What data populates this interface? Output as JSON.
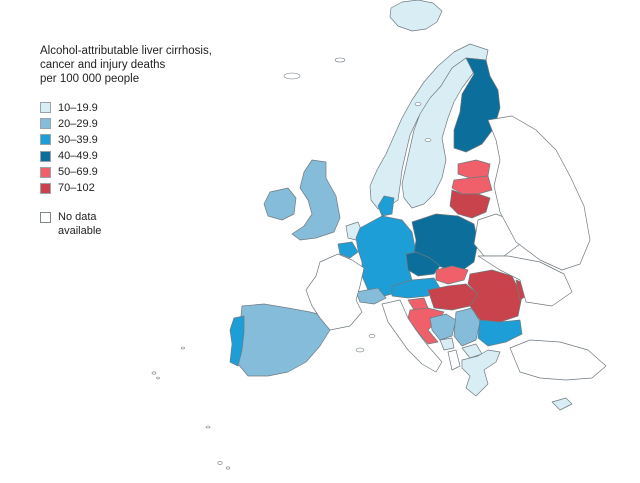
{
  "legend": {
    "title": "Alcohol-attributable liver cirrhosis,\ncancer and injury deaths\nper 100 000 people",
    "bins": [
      {
        "label": "10–19.9",
        "color": "#d9edf5"
      },
      {
        "label": "20–29.9",
        "color": "#85bcd9"
      },
      {
        "label": "30–39.9",
        "color": "#1d9ed6"
      },
      {
        "label": "40–49.9",
        "color": "#0b6e9b"
      },
      {
        "label": "50–69.9",
        "color": "#f0606a"
      },
      {
        "label": "70–102",
        "color": "#c8434b"
      }
    ],
    "no_data": {
      "label": "No data\navailable",
      "color": "#ffffff"
    }
  },
  "map": {
    "border_color": "#6f7a80",
    "countries": [
      {
        "name": "Iceland",
        "bin": 0
      },
      {
        "name": "Norway",
        "bin": 0
      },
      {
        "name": "Sweden",
        "bin": 0
      },
      {
        "name": "Finland",
        "bin": 3
      },
      {
        "name": "Estonia",
        "bin": 4
      },
      {
        "name": "Latvia",
        "bin": 4
      },
      {
        "name": "Lithuania",
        "bin": 5
      },
      {
        "name": "United Kingdom",
        "bin": 1
      },
      {
        "name": "Ireland",
        "bin": 1
      },
      {
        "name": "Netherlands",
        "bin": 0
      },
      {
        "name": "Belgium",
        "bin": 2
      },
      {
        "name": "Germany",
        "bin": 2
      },
      {
        "name": "Denmark",
        "bin": 2
      },
      {
        "name": "Poland",
        "bin": 3
      },
      {
        "name": "Czechia",
        "bin": 3
      },
      {
        "name": "Slovakia",
        "bin": 4
      },
      {
        "name": "Austria",
        "bin": 2
      },
      {
        "name": "Switzerland",
        "bin": 1
      },
      {
        "name": "Slovenia",
        "bin": 4
      },
      {
        "name": "Hungary",
        "bin": 5
      },
      {
        "name": "Croatia",
        "bin": 4
      },
      {
        "name": "Bosnia and Herzegovina",
        "bin": 1
      },
      {
        "name": "Serbia",
        "bin": 1
      },
      {
        "name": "Montenegro",
        "bin": 0
      },
      {
        "name": "Romania",
        "bin": 5
      },
      {
        "name": "Moldova",
        "bin": 5
      },
      {
        "name": "Bulgaria",
        "bin": 2
      },
      {
        "name": "North Macedonia",
        "bin": 0
      },
      {
        "name": "Greece",
        "bin": 0
      },
      {
        "name": "Cyprus",
        "bin": 0
      },
      {
        "name": "Spain",
        "bin": 1
      },
      {
        "name": "Portugal",
        "bin": 2
      },
      {
        "name": "France",
        "bin": null
      },
      {
        "name": "Italy",
        "bin": null
      },
      {
        "name": "Luxembourg",
        "bin": null
      },
      {
        "name": "Belarus",
        "bin": null
      },
      {
        "name": "Ukraine",
        "bin": null
      },
      {
        "name": "Russia",
        "bin": null
      },
      {
        "name": "Albania",
        "bin": null
      },
      {
        "name": "Turkey",
        "bin": null
      }
    ]
  }
}
